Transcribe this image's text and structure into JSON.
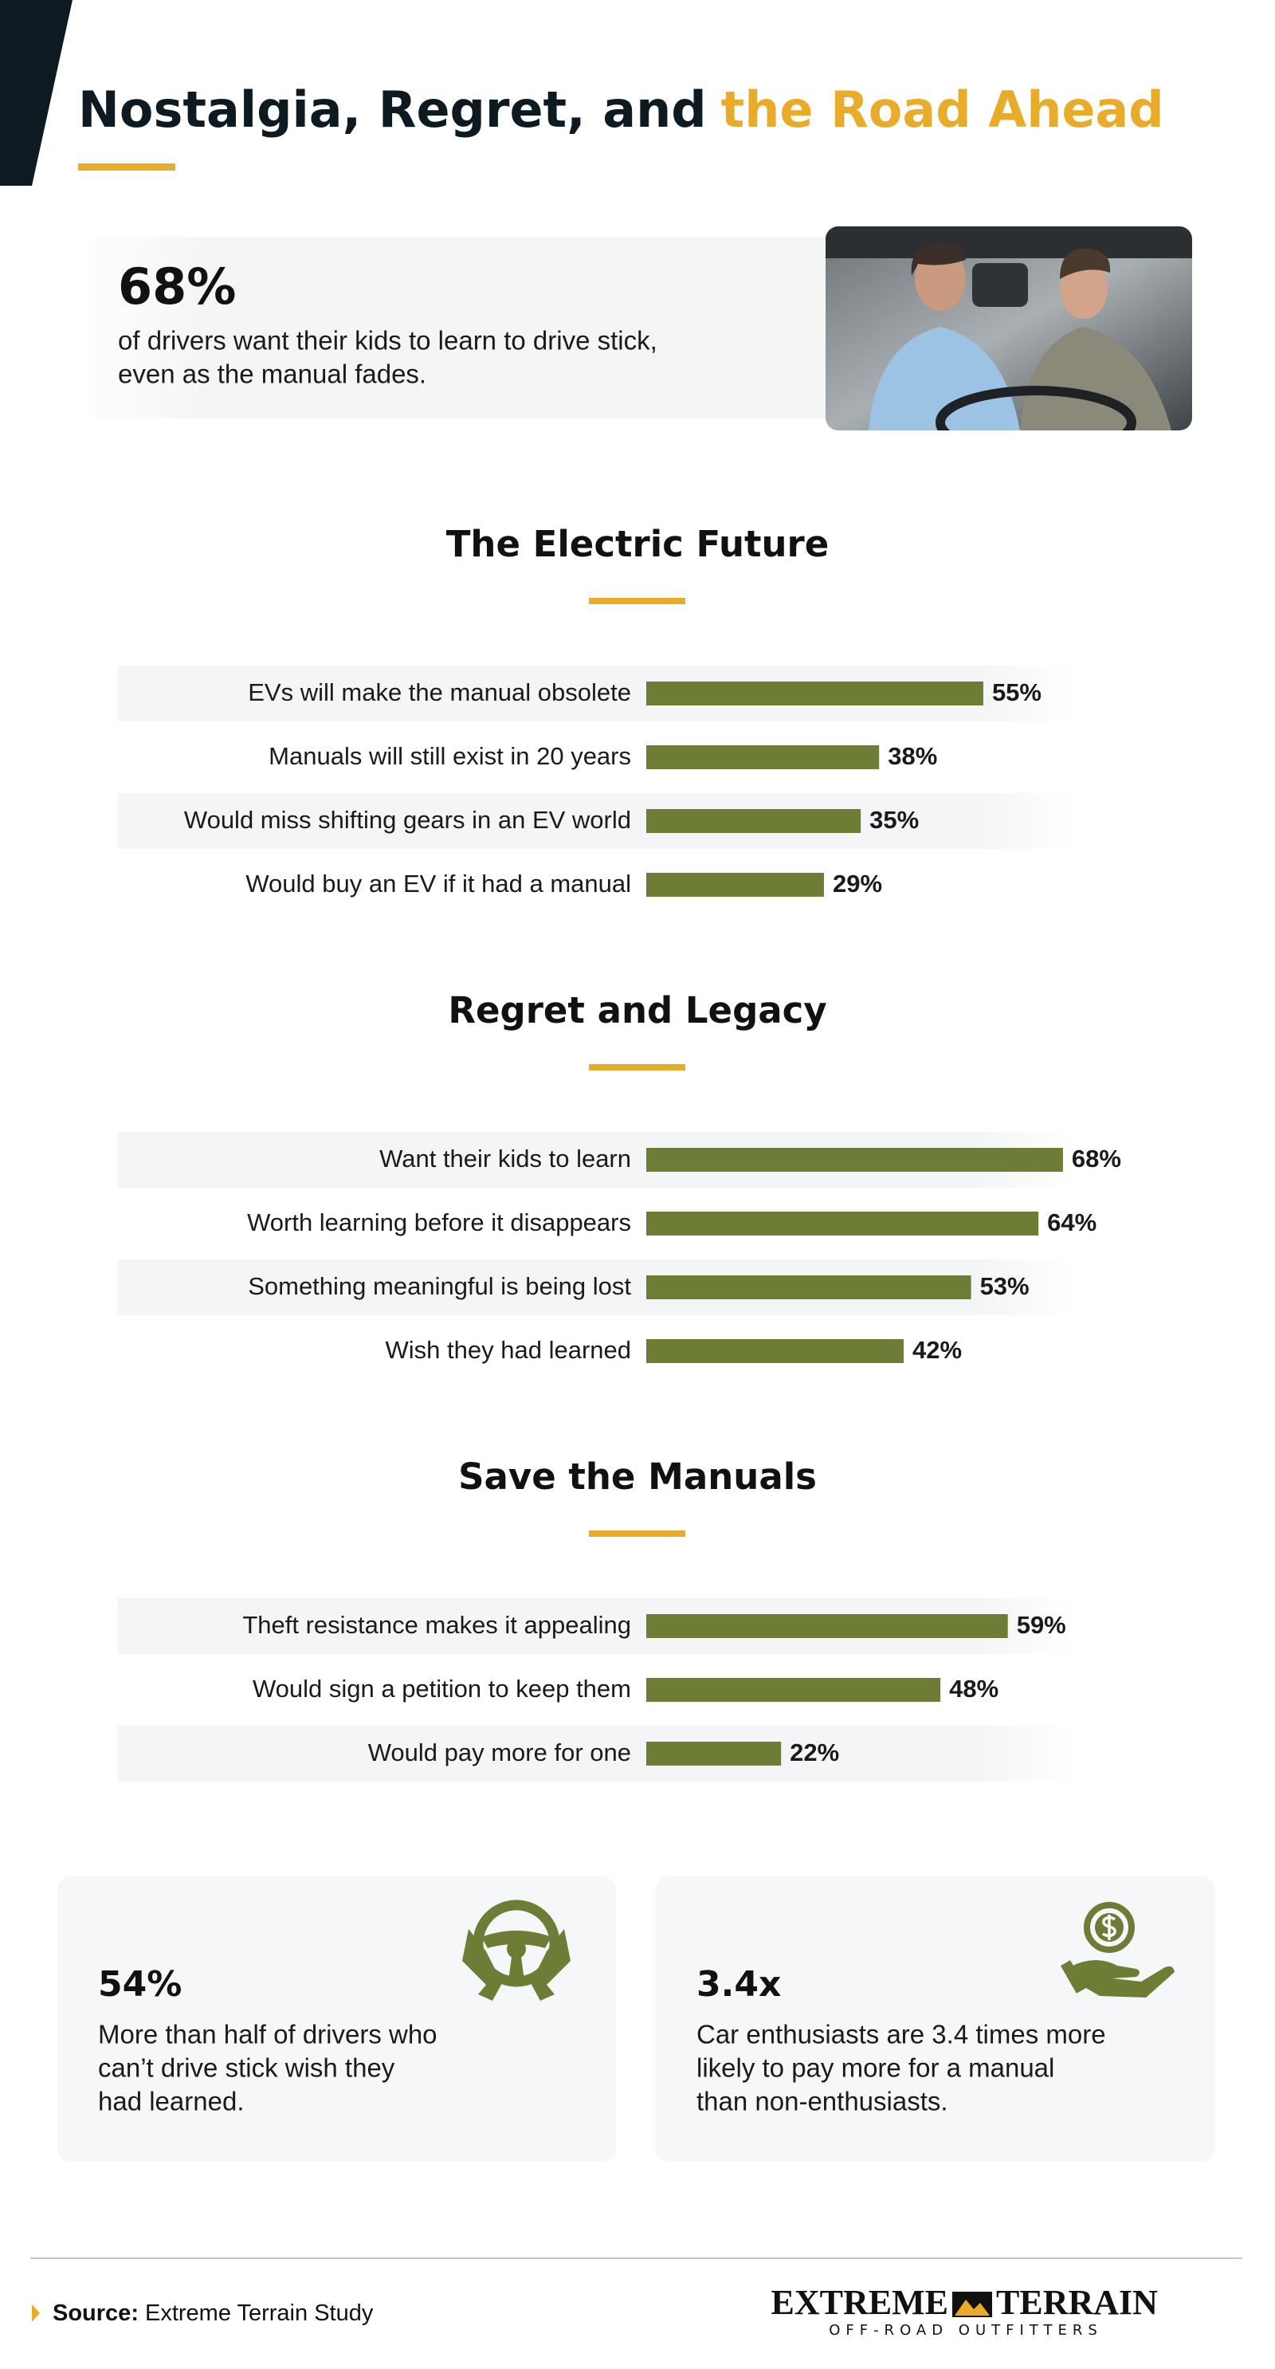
{
  "header": {
    "title": "Nostalgia, Regret, and",
    "title_highlight": "the Road Ahead"
  },
  "hero": {
    "stat": "68%",
    "lines": [
      "of drivers want their kids to learn to drive stick,",
      "even as the manual fades."
    ]
  },
  "sections": [
    {
      "type": "bar",
      "title": "The Electric Future",
      "color": "#6e7d35",
      "categories": [
        "EVs will make the manual obsolete",
        "Manuals will still exist in 20 years",
        "Would miss shifting gears in an EV world",
        "Would buy an EV if it had a manual"
      ],
      "values": [
        55,
        38,
        35,
        29
      ],
      "value_labels": [
        "55%",
        "38%",
        "35%",
        "29%"
      ]
    },
    {
      "type": "bar",
      "title": "Regret and Legacy",
      "color": "#6e7d35",
      "categories": [
        "Want their kids to learn",
        "Worth learning before it disappears",
        "Something meaningful is being lost",
        "Wish they had learned"
      ],
      "values": [
        68,
        64,
        53,
        42
      ],
      "value_labels": [
        "68%",
        "64%",
        "53%",
        "42%"
      ]
    },
    {
      "type": "bar",
      "title": "Save the Manuals",
      "color": "#6e7d35",
      "categories": [
        "Theft resistance makes it appealing",
        "Would sign a petition to keep them",
        "Would pay more for one"
      ],
      "values": [
        59,
        48,
        22
      ],
      "value_labels": [
        "59%",
        "48%",
        "22%"
      ]
    }
  ],
  "cards": [
    {
      "stat": "54%",
      "lines": [
        "More than half of drivers who",
        "can’t drive stick wish they",
        "had learned."
      ]
    },
    {
      "stat": "3.4x",
      "lines": [
        "Car enthusiasts are 3.4 times more",
        "likely to pay more for a manual",
        "than non-enthusiasts."
      ]
    }
  ],
  "footer": {
    "source_label": "Source:",
    "source": "Extreme Terrain Study",
    "logo_left": "EXTREME",
    "logo_right": "TERRAIN",
    "logo_tagline": "OFF-ROAD OUTFITTERS"
  }
}
